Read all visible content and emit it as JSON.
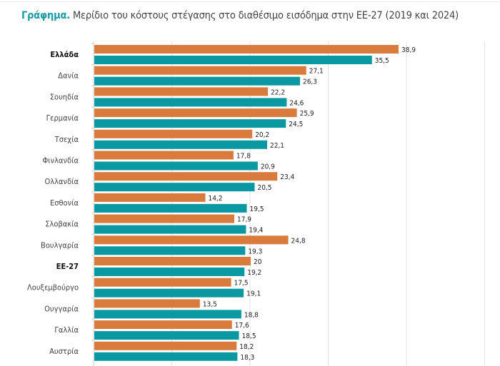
{
  "title": {
    "lead": "Γράφημα.",
    "text": " Μερίδιο του κόστους στέγασης στο διαθέσιμο εισόδημα στην ΕΕ-27 (2019 και 2024)"
  },
  "chart_data": {
    "type": "bar",
    "orientation": "horizontal",
    "title": "Γράφημα. Μερίδιο του κόστους στέγασης στο διαθέσιμο εισόδημα στην ΕΕ-27 (2019 και 2024)",
    "categories": [
      "Ελλάδα",
      "Δανία",
      "Σουηδία",
      "Γερμανία",
      "Τσεχία",
      "Φινλανδία",
      "Ολλανδία",
      "Εσθονία",
      "Σλοβακία",
      "Βουλγαρία",
      "ΕΕ-27",
      "Λουξεμβούργο",
      "Ουγγαρία",
      "Γαλλία",
      "Αυστρία"
    ],
    "highlighted_categories": [
      "Ελλάδα",
      "ΕΕ-27"
    ],
    "series": [
      {
        "color": "#d97b3c",
        "values": [
          38.9,
          27.1,
          22.2,
          25.9,
          20.2,
          17.8,
          23.4,
          14.2,
          17.9,
          24.8,
          20,
          17.5,
          13.5,
          17.6,
          18.2
        ],
        "labels": [
          "38,9",
          "27,1",
          "22,2",
          "25,9",
          "20,2",
          "17,8",
          "23,4",
          "14,2",
          "17,9",
          "24,8",
          "20",
          "17,5",
          "13,5",
          "17,6",
          "18,2"
        ]
      },
      {
        "color": "#0a98a2",
        "values": [
          35.5,
          26.3,
          24.6,
          24.5,
          22.1,
          20.9,
          20.5,
          19.5,
          19.4,
          19.3,
          19.2,
          19.1,
          18.8,
          18.5,
          18.3
        ],
        "labels": [
          "35,5",
          "26,3",
          "24,6",
          "24,5",
          "22,1",
          "20,9",
          "20,5",
          "19,5",
          "19,4",
          "19,3",
          "19,2",
          "19,1",
          "18,8",
          "18,5",
          "18,3"
        ]
      }
    ],
    "xlim": [
      0,
      50
    ],
    "grid": true,
    "xlabel": "",
    "ylabel": ""
  }
}
